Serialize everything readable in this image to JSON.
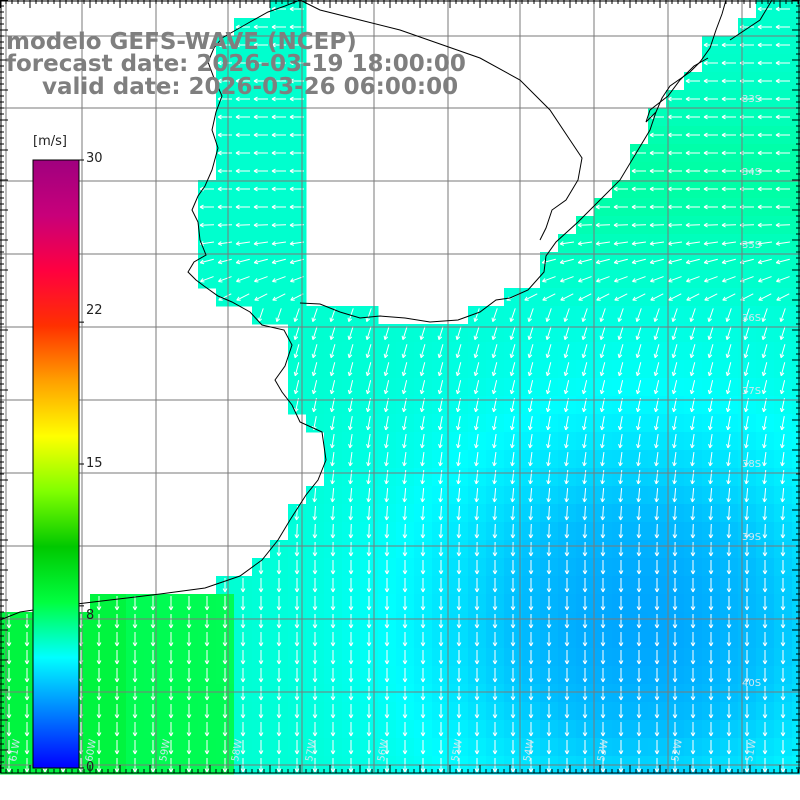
{
  "title": {
    "line1": "modelo GEFS-WAVE (NCEP)",
    "line2": "forecast date: 2026-03-19 18:00:00",
    "line3": "valid date: 2026-03-26 06:00:00"
  },
  "colorbar": {
    "unit": "[m/s]",
    "min": 0,
    "max": 30,
    "tick_labels": [
      "30",
      "22",
      "15",
      "8",
      "0"
    ],
    "tick_values": [
      30,
      22,
      15,
      8,
      0
    ],
    "colors": [
      "#0000ff",
      "#0080ff",
      "#00ffff",
      "#00ff40",
      "#00c800",
      "#80ff00",
      "#ffff00",
      "#ffa000",
      "#ff3000",
      "#ff0040",
      "#c8007a",
      "#a0007f"
    ]
  },
  "map": {
    "lat_labels": [
      "33S",
      "34S",
      "35S",
      "36S",
      "37S",
      "38S",
      "39S",
      "40S"
    ],
    "lon_labels": [
      "61W",
      "60W",
      "59W",
      "58W",
      "57W",
      "56W",
      "55W",
      "54W",
      "53W",
      "52W",
      "51W"
    ],
    "land_color": "#ffffff",
    "coast_color": "#000000",
    "grid_color": "#7a7a7a",
    "arrow_color": "#ffffff"
  }
}
